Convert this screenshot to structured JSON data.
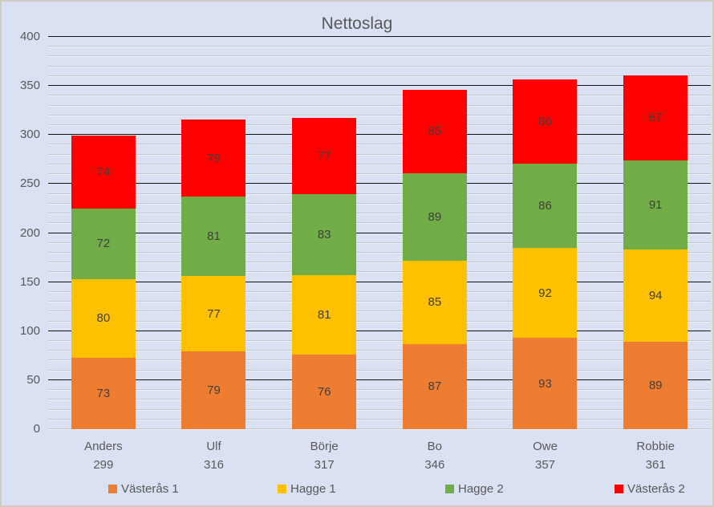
{
  "title": "Nettoslag",
  "palette": {
    "background": "#d9e1f2",
    "border": "#cfccc0",
    "major_gridline": "#141414",
    "minor_gridline": "#c2c6d0",
    "axis_text": "#595959",
    "data_label_text": "#3f3f3f"
  },
  "chart_data": {
    "type": "bar",
    "stacked": true,
    "title": "Nettoslag",
    "xlabel": "",
    "ylabel": "",
    "ylim": [
      0,
      400
    ],
    "y_major_ticks": [
      0,
      50,
      100,
      150,
      200,
      250,
      300,
      350,
      400
    ],
    "y_minor_step": 10,
    "grid": "major-black-and-minor-gray",
    "legend_position": "bottom",
    "categories": [
      "Anders",
      "Ulf",
      "Börje",
      "Bo",
      "Owe",
      "Robbie"
    ],
    "category_totals": [
      299,
      316,
      317,
      346,
      357,
      361
    ],
    "series": [
      {
        "name": "Västerås 1",
        "color": "#ED7D31",
        "values": [
          73,
          79,
          76,
          87,
          93,
          89
        ]
      },
      {
        "name": "Hagge 1",
        "color": "#FFC000",
        "values": [
          80,
          77,
          81,
          85,
          92,
          94
        ]
      },
      {
        "name": "Hagge 2",
        "color": "#70AD47",
        "values": [
          72,
          81,
          83,
          89,
          86,
          91
        ]
      },
      {
        "name": "Västerås 2",
        "color": "#FF0000",
        "values": [
          74,
          79,
          77,
          85,
          86,
          87
        ]
      }
    ]
  }
}
